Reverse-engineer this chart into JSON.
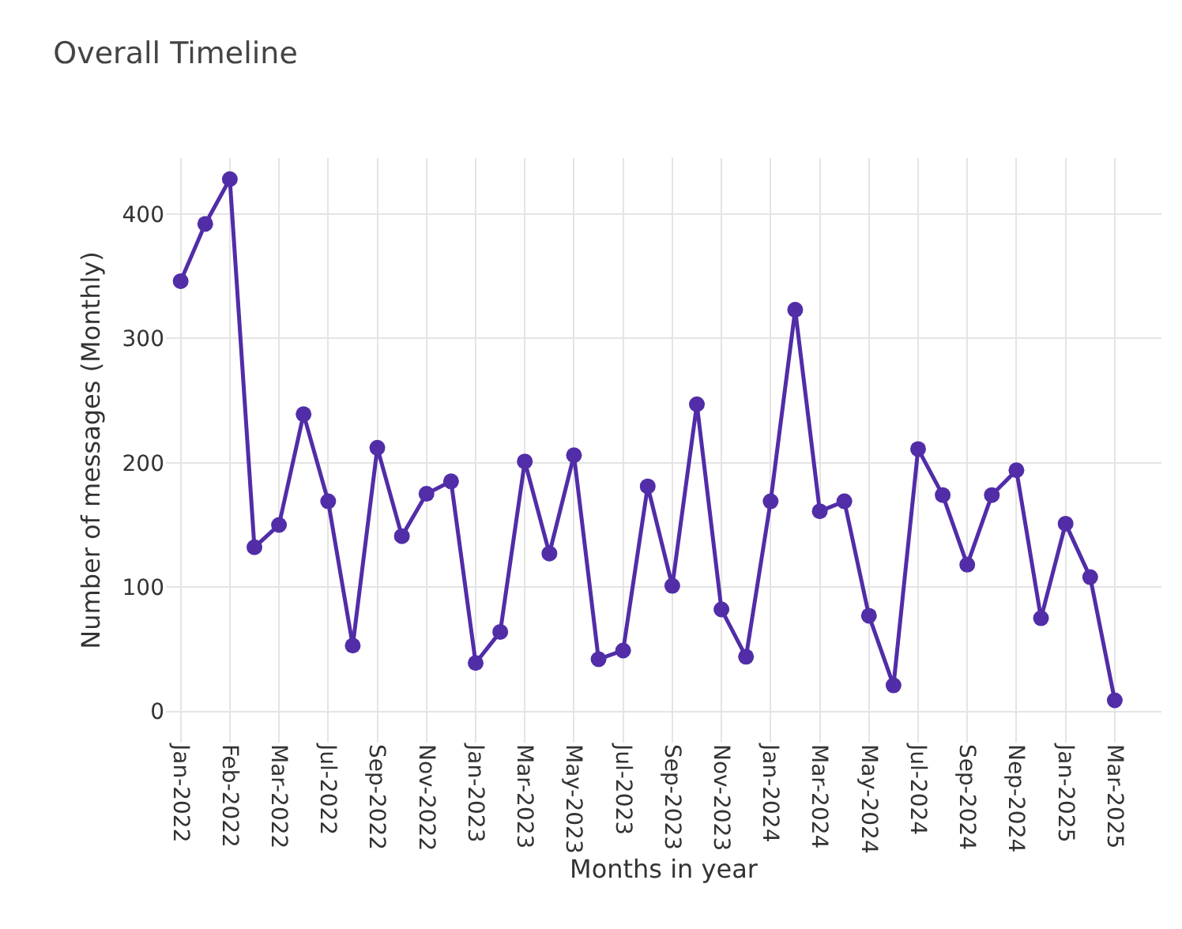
{
  "chart_data": {
    "type": "line",
    "title": "Overall Timeline",
    "xlabel": "Months in year",
    "ylabel": "Number of messages (Monthly)",
    "categories": [
      "Jan-2022",
      null,
      "Feb-2022",
      null,
      "Mar-2022",
      null,
      "Jul-2022",
      null,
      "Sep-2022",
      null,
      "Nov-2022",
      null,
      "Jan-2023",
      null,
      "Mar-2023",
      null,
      "May-2023",
      null,
      "Jul-2023",
      null,
      "Sep-2023",
      null,
      "Nov-2023",
      null,
      "Jan-2024",
      null,
      "Mar-2024",
      null,
      "May-2024",
      null,
      "Jul-2024",
      null,
      "Sep-2024",
      null,
      "Nep-2024",
      null,
      "Jan-2025",
      null,
      "Mar-2025"
    ],
    "series": [
      {
        "color": "#512da8",
        "values": [
          346,
          392,
          428,
          132,
          150,
          239,
          169,
          53,
          212,
          141,
          175,
          185,
          39,
          64,
          201,
          127,
          206,
          42,
          49,
          181,
          101,
          247,
          82,
          44,
          169,
          323,
          161,
          169,
          77,
          21,
          211,
          174,
          118,
          174,
          194,
          75,
          151,
          108,
          9
        ]
      }
    ],
    "ylim": [
      -25,
      445
    ],
    "yticks": [
      0,
      100,
      200,
      300,
      400
    ],
    "grid": true,
    "marker": "circle",
    "line_style": "solid"
  }
}
